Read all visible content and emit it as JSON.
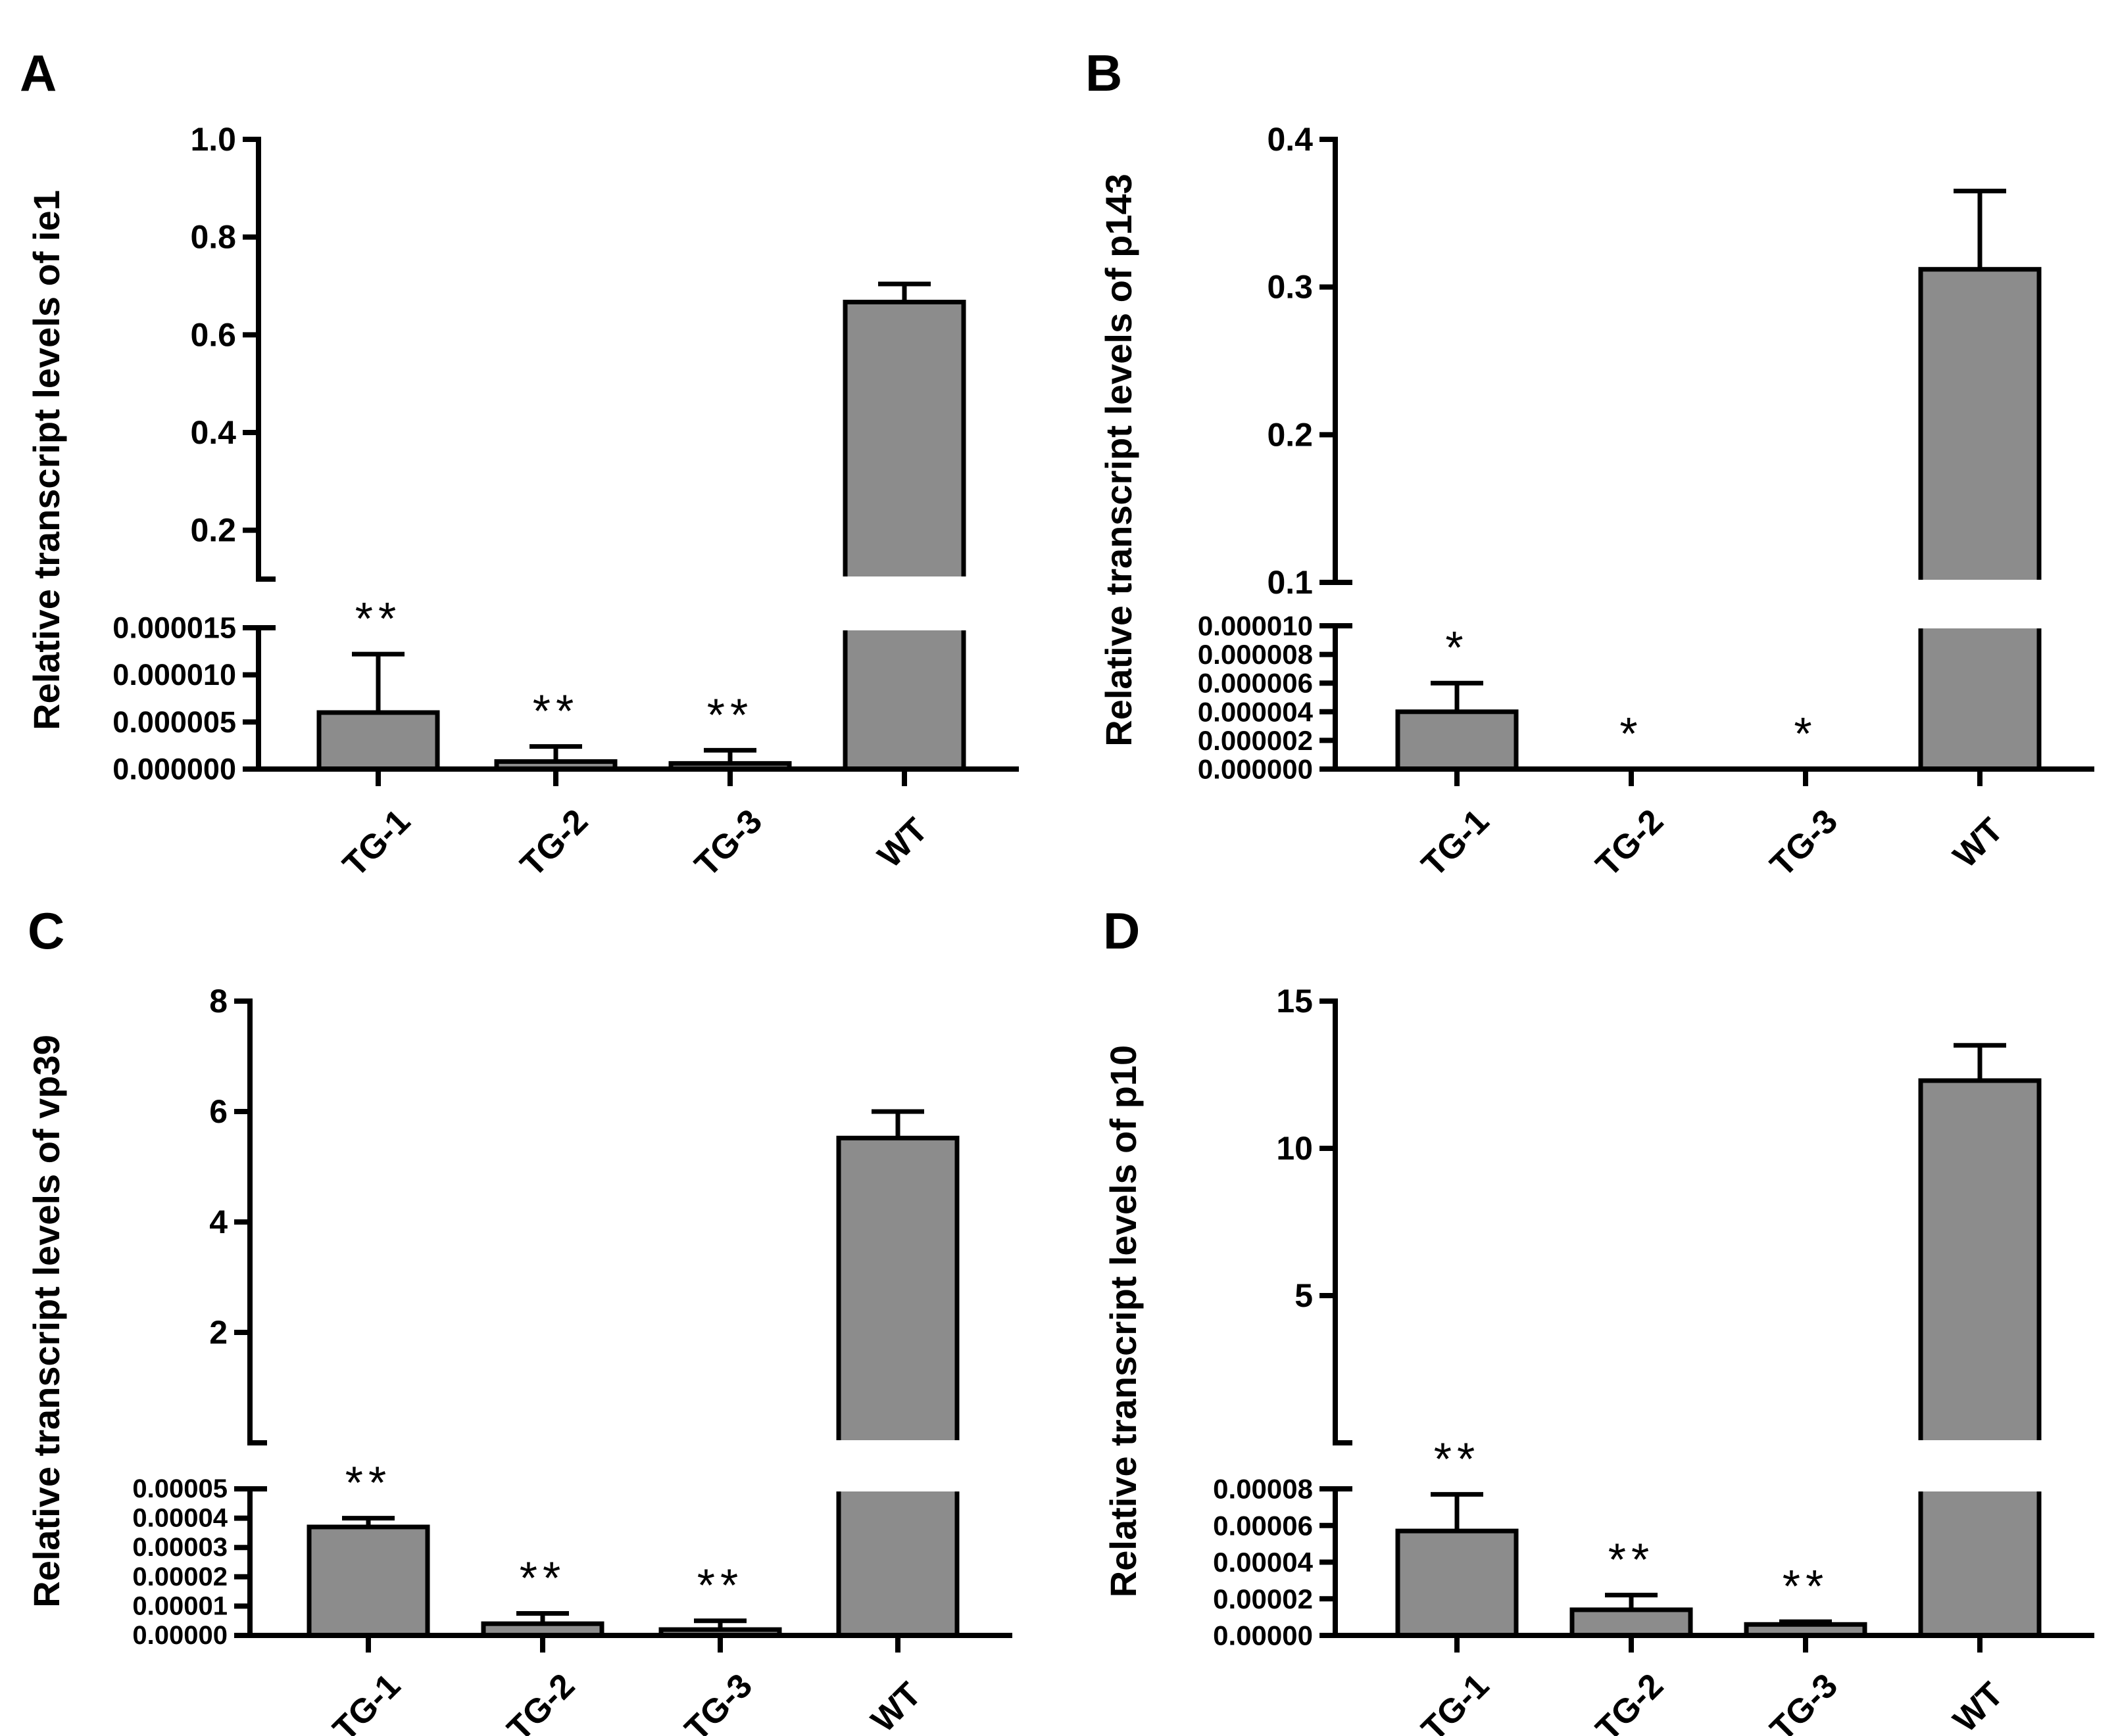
{
  "chart_data": [
    {
      "panel_label": "A",
      "type": "bar",
      "ylabel": "Relative transcript levels of ie1",
      "categories": [
        "TG-1",
        "TG-2",
        "TG-3",
        "WT"
      ],
      "values": [
        6e-06,
        8e-07,
        6e-07,
        0.667
      ],
      "errors": [
        6.2e-06,
        1.6e-06,
        1.4e-06,
        0.037
      ],
      "significance": [
        "**",
        "**",
        "**",
        ""
      ],
      "broken_axis": true,
      "lower_segment": {
        "ylim": [
          0,
          1.5e-05
        ],
        "ticks": [
          0,
          5e-06,
          1e-05,
          1.5e-05
        ],
        "tick_labels": [
          "0.000000",
          "0.000005",
          "0.000010",
          "0.000015"
        ]
      },
      "upper_segment": {
        "ylim": [
          0.1,
          1.0
        ],
        "ticks": [
          0.2,
          0.4,
          0.6,
          0.8,
          1.0
        ],
        "tick_labels": [
          "0.2",
          "0.4",
          "0.6",
          "0.8",
          "1.0"
        ]
      }
    },
    {
      "panel_label": "B",
      "type": "bar",
      "ylabel": "Relative transcript levels of p143",
      "categories": [
        "TG-1",
        "TG-2",
        "TG-3",
        "WT"
      ],
      "values": [
        4e-06,
        0,
        0,
        0.312
      ],
      "errors": [
        2e-06,
        0,
        0,
        0.053
      ],
      "significance": [
        "*",
        "*",
        "*",
        ""
      ],
      "broken_axis": true,
      "lower_segment": {
        "ylim": [
          0,
          1e-05
        ],
        "ticks": [
          0,
          2e-06,
          4e-06,
          6e-06,
          8e-06,
          1e-05
        ],
        "tick_labels": [
          "0.000000",
          "0.000002",
          "0.000004",
          "0.000006",
          "0.000008",
          "0.000010"
        ]
      },
      "upper_segment": {
        "ylim": [
          0.1,
          0.4
        ],
        "ticks": [
          0.1,
          0.2,
          0.3,
          0.4
        ],
        "tick_labels": [
          "0.1",
          "0.2",
          "0.3",
          "0.4"
        ]
      }
    },
    {
      "panel_label": "C",
      "type": "bar",
      "ylabel": "Relative transcript levels of vp39",
      "categories": [
        "TG-1",
        "TG-2",
        "TG-3",
        "WT"
      ],
      "values": [
        3.7e-05,
        4e-06,
        2e-06,
        5.52
      ],
      "errors": [
        3e-06,
        3.5e-06,
        3e-06,
        0.48
      ],
      "significance": [
        "**",
        "**",
        "**",
        ""
      ],
      "broken_axis": true,
      "lower_segment": {
        "ylim": [
          0,
          5e-05
        ],
        "ticks": [
          0,
          1e-05,
          2e-05,
          3e-05,
          4e-05,
          5e-05
        ],
        "tick_labels": [
          "0.00000",
          "0.00001",
          "0.00002",
          "0.00003",
          "0.00004",
          "0.00005"
        ]
      },
      "upper_segment": {
        "ylim": [
          0,
          8
        ],
        "ticks": [
          2,
          4,
          6,
          8
        ],
        "tick_labels": [
          "2",
          "4",
          "6",
          "8"
        ]
      }
    },
    {
      "panel_label": "D",
      "type": "bar",
      "ylabel": "Relative transcript levels of p10",
      "categories": [
        "TG-1",
        "TG-2",
        "TG-3",
        "WT"
      ],
      "values": [
        5.7e-05,
        1.4e-05,
        6e-06,
        12.3
      ],
      "errors": [
        2e-05,
        8e-06,
        1.5e-06,
        1.2
      ],
      "significance": [
        "**",
        "**",
        "**",
        ""
      ],
      "broken_axis": true,
      "lower_segment": {
        "ylim": [
          0,
          8e-05
        ],
        "ticks": [
          0,
          2e-05,
          4e-05,
          6e-05,
          8e-05
        ],
        "tick_labels": [
          "0.00000",
          "0.00002",
          "0.00004",
          "0.00006",
          "0.00008"
        ]
      },
      "upper_segment": {
        "ylim": [
          0,
          15
        ],
        "ticks": [
          5,
          10,
          15
        ],
        "tick_labels": [
          "5",
          "10",
          "15"
        ]
      }
    }
  ],
  "colors": {
    "bar_fill": "#8c8c8c",
    "stroke": "#000000",
    "background": "#ffffff"
  }
}
